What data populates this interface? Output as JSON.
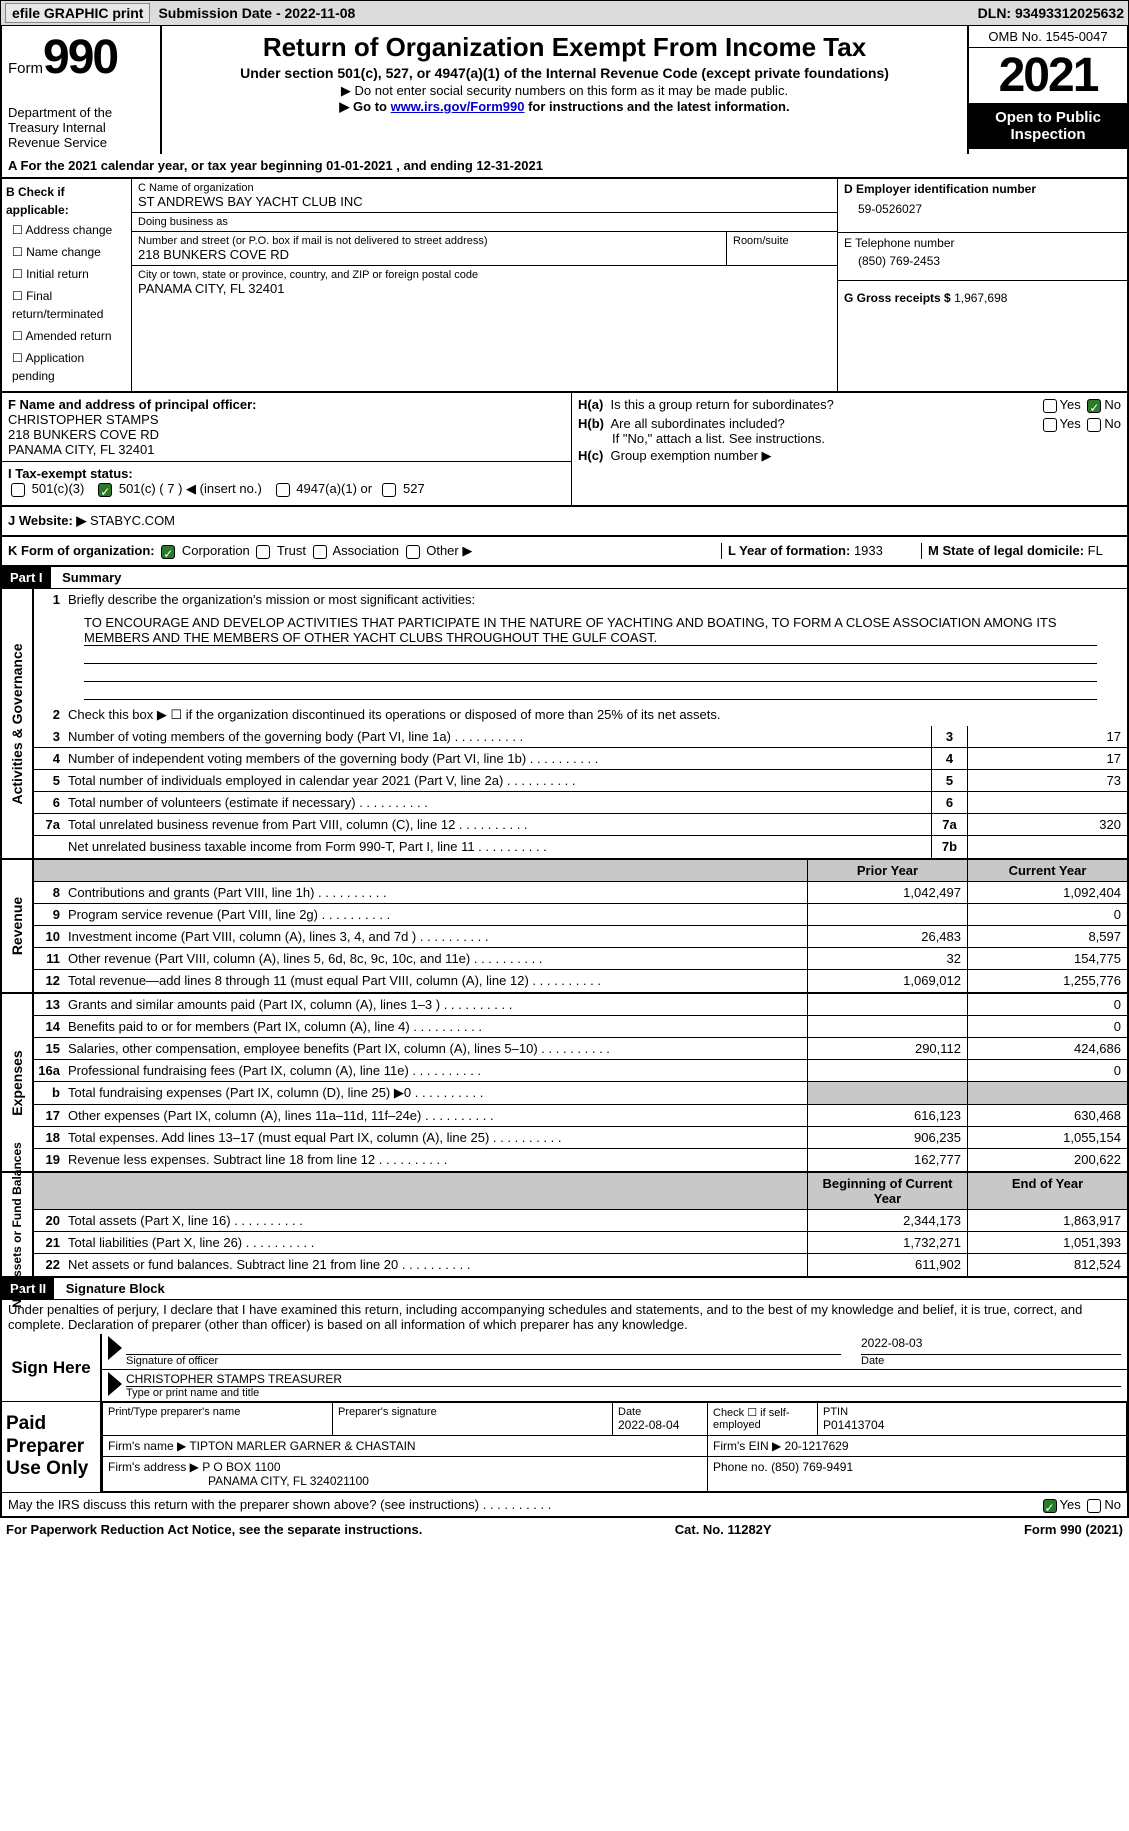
{
  "topbar": {
    "efile": "efile GRAPHIC print",
    "submission": "Submission Date - 2022-11-08",
    "dln": "DLN: 93493312025632"
  },
  "header": {
    "form_prefix": "Form",
    "form_num": "990",
    "dept": "Department of the Treasury\nInternal Revenue Service",
    "title": "Return of Organization Exempt From Income Tax",
    "subtitle": "Under section 501(c), 527, or 4947(a)(1) of the Internal Revenue Code (except private foundations)",
    "note1": "▶ Do not enter social security numbers on this form as it may be made public.",
    "note2_pre": "▶ Go to ",
    "note2_link": "www.irs.gov/Form990",
    "note2_post": " for instructions and the latest information.",
    "omb": "OMB No. 1545-0047",
    "year": "2021",
    "open": "Open to Public Inspection"
  },
  "row_a": {
    "text_pre": "A For the 2021 calendar year, or tax year beginning ",
    "begin": "01-01-2021",
    "mid": "  , and ending ",
    "end": "12-31-2021"
  },
  "col_b": {
    "label": "B Check if applicable:",
    "items": [
      "Address change",
      "Name change",
      "Initial return",
      "Final return/terminated",
      "Amended return",
      "Application pending"
    ]
  },
  "block_c": {
    "label_name": "C Name of organization",
    "name": "ST ANDREWS BAY YACHT CLUB INC",
    "label_dba": "Doing business as",
    "dba": "",
    "label_addr": "Number and street (or P.O. box if mail is not delivered to street address)",
    "addr": "218 BUNKERS COVE RD",
    "label_suite": "Room/suite",
    "suite": "",
    "label_city": "City or town, state or province, country, and ZIP or foreign postal code",
    "city": "PANAMA CITY, FL  32401"
  },
  "block_d": {
    "label": "D Employer identification number",
    "value": "59-0526027"
  },
  "block_e": {
    "label": "E Telephone number",
    "value": "(850) 769-2453"
  },
  "block_g": {
    "label": "G Gross receipts $",
    "value": "1,967,698"
  },
  "block_f": {
    "label": "F Name and address of principal officer:",
    "line1": "CHRISTOPHER STAMPS",
    "line2": "218 BUNKERS COVE RD",
    "line3": "PANAMA CITY, FL  32401"
  },
  "block_h": {
    "a_q": "Is this a group return for subordinates?",
    "a_yes": "Yes",
    "a_no": "No",
    "b_q": "Are all subordinates included?",
    "b_note": "If \"No,\" attach a list. See instructions.",
    "c_q": "Group exemption number ▶"
  },
  "row_i": {
    "label": "I    Tax-exempt status:",
    "opt1": "501(c)(3)",
    "opt2": "501(c) ( 7 ) ◀ (insert no.)",
    "opt3": "4947(a)(1) or",
    "opt4": "527"
  },
  "row_j": {
    "label": "J   Website: ▶",
    "value": "STABYC.COM"
  },
  "row_k": {
    "label": "K Form of organization:",
    "opts": [
      "Corporation",
      "Trust",
      "Association",
      "Other ▶"
    ],
    "l_label": "L Year of formation:",
    "l_val": "1933",
    "m_label": "M State of legal domicile:",
    "m_val": "FL"
  },
  "part1": {
    "tag": "Part I",
    "title": "Summary",
    "q1": "Briefly describe the organization's mission or most significant activities:",
    "mission": "TO ENCOURAGE AND DEVELOP ACTIVITIES THAT PARTICIPATE IN THE NATURE OF YACHTING AND BOATING, TO FORM A CLOSE ASSOCIATION AMONG ITS MEMBERS AND THE MEMBERS OF OTHER YACHT CLUBS THROUGHOUT THE GULF COAST.",
    "q2": "Check this box ▶ ☐ if the organization discontinued its operations or disposed of more than 25% of its net assets.",
    "vlabel1": "Activities & Governance",
    "vlabel2": "Revenue",
    "vlabel3": "Expenses",
    "vlabel4": "Net Assets or Fund Balances",
    "rows_gov": [
      {
        "n": "3",
        "t": "Number of voting members of the governing body (Part VI, line 1a)",
        "box": "3",
        "v": "17"
      },
      {
        "n": "4",
        "t": "Number of independent voting members of the governing body (Part VI, line 1b)",
        "box": "4",
        "v": "17"
      },
      {
        "n": "5",
        "t": "Total number of individuals employed in calendar year 2021 (Part V, line 2a)",
        "box": "5",
        "v": "73"
      },
      {
        "n": "6",
        "t": "Total number of volunteers (estimate if necessary)",
        "box": "6",
        "v": ""
      },
      {
        "n": "7a",
        "t": "Total unrelated business revenue from Part VIII, column (C), line 12",
        "box": "7a",
        "v": "320"
      },
      {
        "n": "",
        "t": "Net unrelated business taxable income from Form 990-T, Part I, line 11",
        "box": "7b",
        "v": ""
      }
    ],
    "hdr_prior": "Prior Year",
    "hdr_curr": "Current Year",
    "rows_rev": [
      {
        "n": "8",
        "t": "Contributions and grants (Part VIII, line 1h)",
        "p": "1,042,497",
        "c": "1,092,404"
      },
      {
        "n": "9",
        "t": "Program service revenue (Part VIII, line 2g)",
        "p": "",
        "c": "0"
      },
      {
        "n": "10",
        "t": "Investment income (Part VIII, column (A), lines 3, 4, and 7d )",
        "p": "26,483",
        "c": "8,597"
      },
      {
        "n": "11",
        "t": "Other revenue (Part VIII, column (A), lines 5, 6d, 8c, 9c, 10c, and 11e)",
        "p": "32",
        "c": "154,775"
      },
      {
        "n": "12",
        "t": "Total revenue—add lines 8 through 11 (must equal Part VIII, column (A), line 12)",
        "p": "1,069,012",
        "c": "1,255,776"
      }
    ],
    "rows_exp": [
      {
        "n": "13",
        "t": "Grants and similar amounts paid (Part IX, column (A), lines 1–3 )",
        "p": "",
        "c": "0"
      },
      {
        "n": "14",
        "t": "Benefits paid to or for members (Part IX, column (A), line 4)",
        "p": "",
        "c": "0"
      },
      {
        "n": "15",
        "t": "Salaries, other compensation, employee benefits (Part IX, column (A), lines 5–10)",
        "p": "290,112",
        "c": "424,686"
      },
      {
        "n": "16a",
        "t": "Professional fundraising fees (Part IX, column (A), line 11e)",
        "p": "",
        "c": "0"
      },
      {
        "n": "b",
        "t": "Total fundraising expenses (Part IX, column (D), line 25) ▶0",
        "p": "GREY",
        "c": "GREY"
      },
      {
        "n": "17",
        "t": "Other expenses (Part IX, column (A), lines 11a–11d, 11f–24e)",
        "p": "616,123",
        "c": "630,468"
      },
      {
        "n": "18",
        "t": "Total expenses. Add lines 13–17 (must equal Part IX, column (A), line 25)",
        "p": "906,235",
        "c": "1,055,154"
      },
      {
        "n": "19",
        "t": "Revenue less expenses. Subtract line 18 from line 12",
        "p": "162,777",
        "c": "200,622"
      }
    ],
    "hdr_beg": "Beginning of Current Year",
    "hdr_end": "End of Year",
    "rows_net": [
      {
        "n": "20",
        "t": "Total assets (Part X, line 16)",
        "p": "2,344,173",
        "c": "1,863,917"
      },
      {
        "n": "21",
        "t": "Total liabilities (Part X, line 26)",
        "p": "1,732,271",
        "c": "1,051,393"
      },
      {
        "n": "22",
        "t": "Net assets or fund balances. Subtract line 21 from line 20",
        "p": "611,902",
        "c": "812,524"
      }
    ]
  },
  "part2": {
    "tag": "Part II",
    "title": "Signature Block",
    "decl": "Under penalties of perjury, I declare that I have examined this return, including accompanying schedules and statements, and to the best of my knowledge and belief, it is true, correct, and complete. Declaration of preparer (other than officer) is based on all information of which preparer has any knowledge.",
    "sign_here": "Sign Here",
    "sig_officer": "Signature of officer",
    "sig_date": "2022-08-03",
    "officer_name": "CHRISTOPHER STAMPS TREASURER",
    "type_name": "Type or print name and title",
    "paid": "Paid Preparer Use Only",
    "p_name_lbl": "Print/Type preparer's name",
    "p_sig_lbl": "Preparer's signature",
    "p_date_lbl": "Date",
    "p_date": "2022-08-04",
    "p_check": "Check ☐ if self-employed",
    "ptin_lbl": "PTIN",
    "ptin": "P01413704",
    "firm_name_lbl": "Firm's name    ▶",
    "firm_name": "TIPTON MARLER GARNER & CHASTAIN",
    "firm_ein_lbl": "Firm's EIN ▶",
    "firm_ein": "20-1217629",
    "firm_addr_lbl": "Firm's address ▶",
    "firm_addr1": "P O BOX 1100",
    "firm_addr2": "PANAMA CITY, FL  324021100",
    "phone_lbl": "Phone no.",
    "phone": "(850) 769-9491",
    "discuss": "May the IRS discuss this return with the preparer shown above? (see instructions)",
    "yes": "Yes",
    "no": "No"
  },
  "footer": {
    "left": "For Paperwork Reduction Act Notice, see the separate instructions.",
    "mid": "Cat. No. 11282Y",
    "right": "Form 990 (2021)"
  }
}
